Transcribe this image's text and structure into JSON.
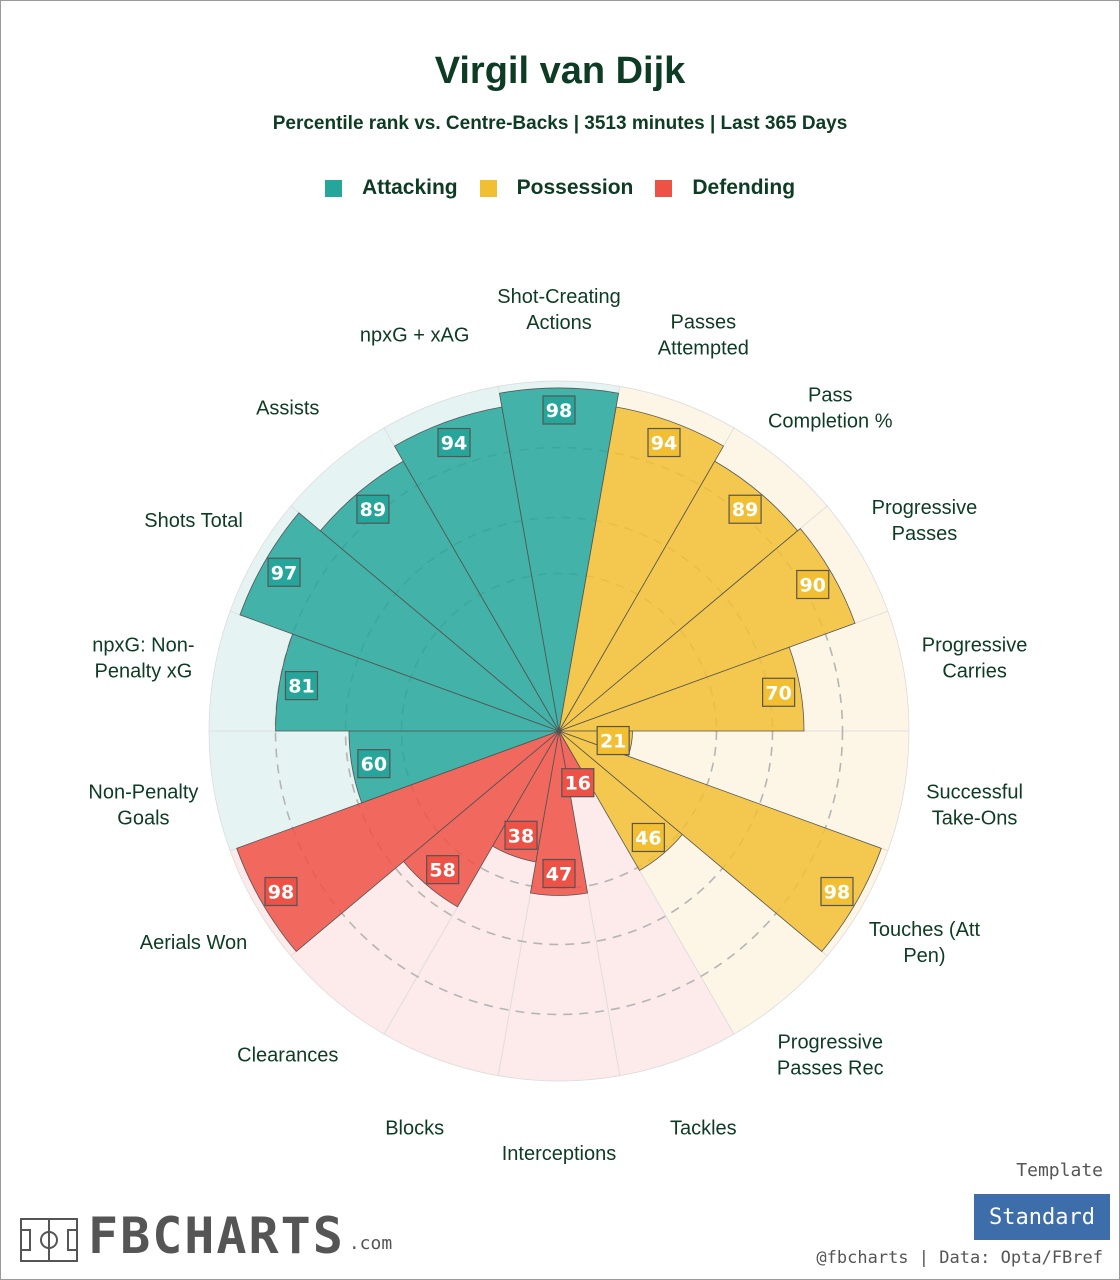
{
  "header": {
    "title": "Virgil van Dijk",
    "subtitle": "Percentile rank vs. Centre-Backs | 3513 minutes | Last 365 Days"
  },
  "legend": [
    {
      "label": "Attacking",
      "color": "#26a69a"
    },
    {
      "label": "Possession",
      "color": "#f2bf33"
    },
    {
      "label": "Defending",
      "color": "#ee5145"
    }
  ],
  "chart_data": {
    "type": "radial-bar",
    "rlim": [
      0,
      100
    ],
    "grid": true,
    "categories": [
      {
        "label": "Shot-Creating\nActions",
        "value": 98,
        "group": "Attacking"
      },
      {
        "label": "Passes\nAttempted",
        "value": 94,
        "group": "Possession"
      },
      {
        "label": "Pass\nCompletion %",
        "value": 89,
        "group": "Possession"
      },
      {
        "label": "Progressive\nPasses",
        "value": 90,
        "group": "Possession"
      },
      {
        "label": "Progressive\nCarries",
        "value": 70,
        "group": "Possession"
      },
      {
        "label": "Successful\nTake-Ons",
        "value": 21,
        "group": "Possession"
      },
      {
        "label": "Touches (Att\nPen)",
        "value": 98,
        "group": "Possession"
      },
      {
        "label": "Progressive\nPasses Rec",
        "value": 46,
        "group": "Possession"
      },
      {
        "label": "Tackles",
        "value": 16,
        "group": "Defending"
      },
      {
        "label": "Interceptions",
        "value": 47,
        "group": "Defending"
      },
      {
        "label": "Blocks",
        "value": 38,
        "group": "Defending"
      },
      {
        "label": "Clearances",
        "value": 58,
        "group": "Defending"
      },
      {
        "label": "Aerials Won",
        "value": 98,
        "group": "Defending"
      },
      {
        "label": "Non-Penalty\nGoals",
        "value": 60,
        "group": "Attacking"
      },
      {
        "label": "npxG: Non-\nPenalty xG",
        "value": 81,
        "group": "Attacking"
      },
      {
        "label": "Shots Total",
        "value": 97,
        "group": "Attacking"
      },
      {
        "label": "Assists",
        "value": 89,
        "group": "Attacking"
      },
      {
        "label": "npxG + xAG",
        "value": 94,
        "group": "Attacking"
      }
    ]
  },
  "styles": {
    "Attacking": {
      "fill": "#26a69a",
      "bg": "#e6f3f3"
    },
    "Possession": {
      "fill": "#f2bf33",
      "bg": "#fdf6e6"
    },
    "Defending": {
      "fill": "#ee5145",
      "bg": "#fdeaea"
    }
  },
  "footer": {
    "template_label": "Template",
    "template_value": "Standard",
    "credit": "@fbcharts | Data: Opta/FBref",
    "logo_text": "FBCHARTS",
    "logo_suffix": ".com"
  }
}
